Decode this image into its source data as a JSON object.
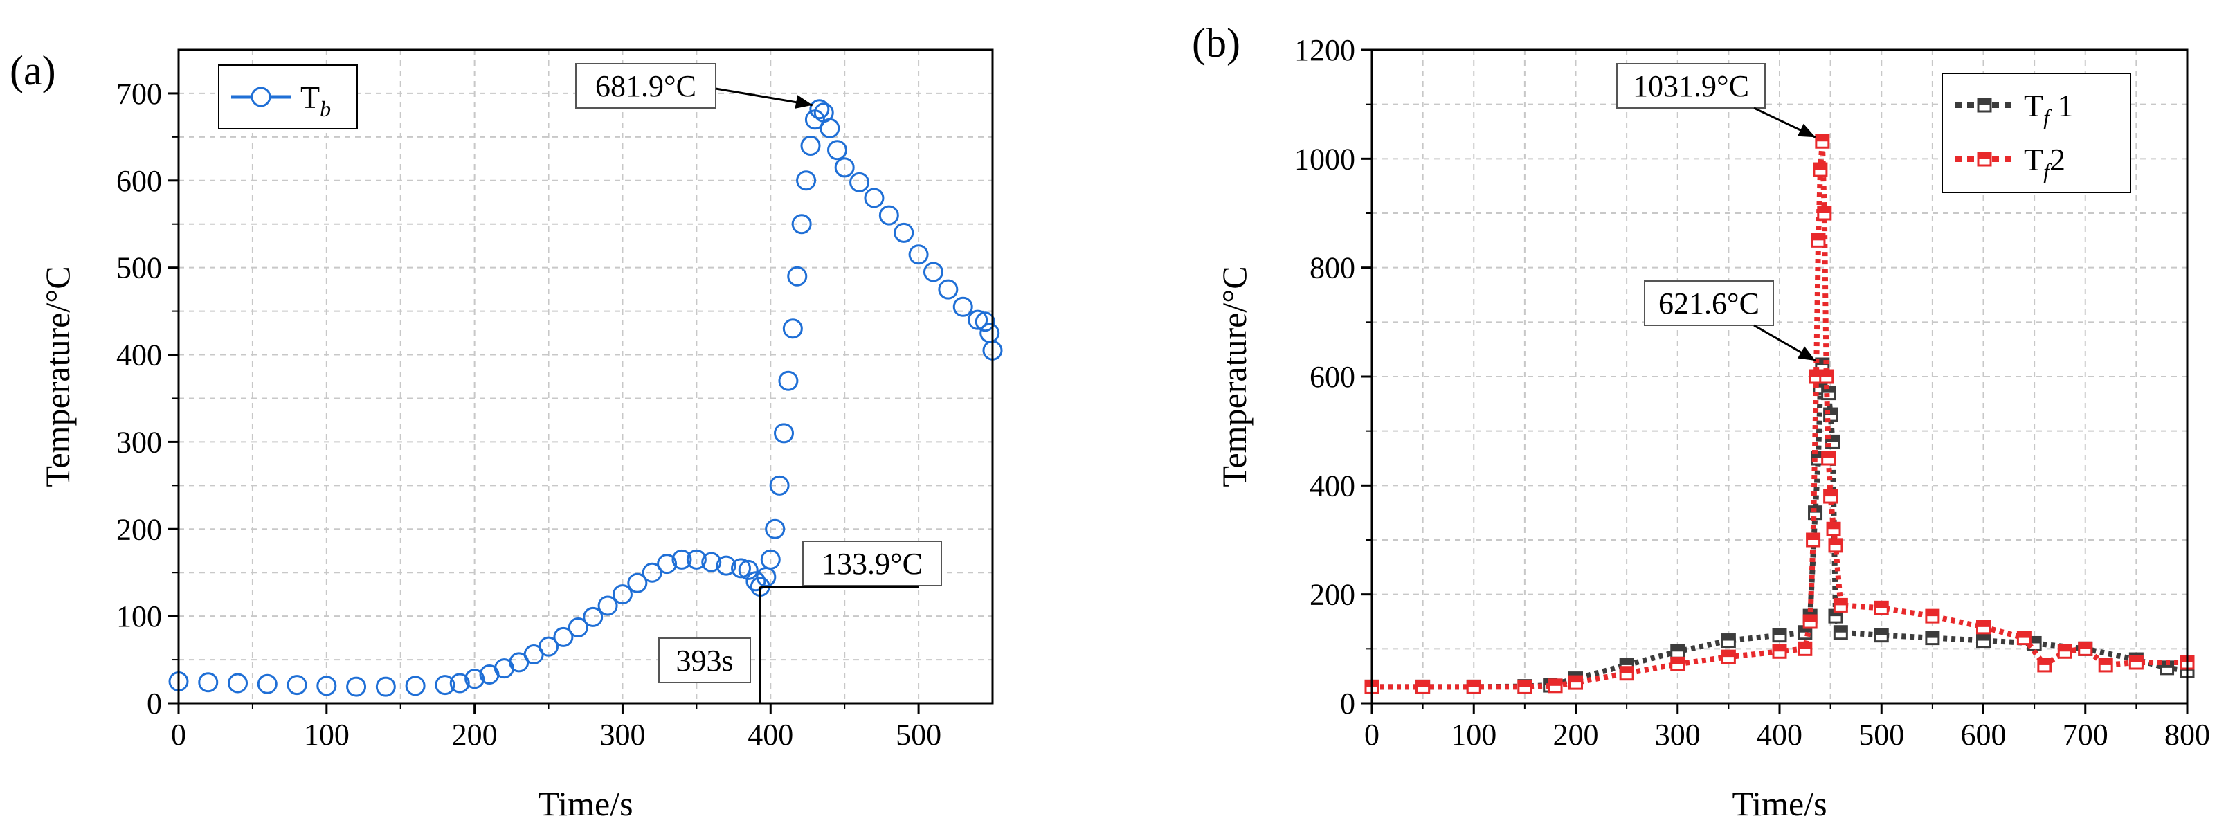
{
  "chart_data": [
    {
      "panel_label": "(a)",
      "type": "scatter",
      "title": "",
      "xlabel": "Time/s",
      "ylabel": "Temperature/°C",
      "xlim": [
        0,
        550
      ],
      "ylim": [
        0,
        750
      ],
      "xticks": [
        0,
        100,
        200,
        300,
        400,
        500
      ],
      "yticks": [
        0,
        100,
        200,
        300,
        400,
        500,
        600,
        700
      ],
      "grid": true,
      "legend_position": "top-left",
      "series": [
        {
          "name": "T",
          "subscript": "b",
          "color": "#1f6fd6",
          "marker": "open-circle",
          "points": [
            [
              0,
              25
            ],
            [
              20,
              24
            ],
            [
              40,
              23
            ],
            [
              60,
              22
            ],
            [
              80,
              21
            ],
            [
              100,
              20
            ],
            [
              120,
              19
            ],
            [
              140,
              19
            ],
            [
              160,
              20
            ],
            [
              180,
              21
            ],
            [
              190,
              23
            ],
            [
              200,
              28
            ],
            [
              210,
              33
            ],
            [
              220,
              40
            ],
            [
              230,
              47
            ],
            [
              240,
              56
            ],
            [
              250,
              65
            ],
            [
              260,
              76
            ],
            [
              270,
              87
            ],
            [
              280,
              99
            ],
            [
              290,
              112
            ],
            [
              300,
              125
            ],
            [
              310,
              138
            ],
            [
              320,
              150
            ],
            [
              330,
              160
            ],
            [
              340,
              165
            ],
            [
              350,
              165
            ],
            [
              360,
              162
            ],
            [
              370,
              158
            ],
            [
              380,
              155
            ],
            [
              385,
              153
            ],
            [
              390,
              140
            ],
            [
              393,
              133.9
            ],
            [
              397,
              145
            ],
            [
              400,
              165
            ],
            [
              403,
              200
            ],
            [
              406,
              250
            ],
            [
              409,
              310
            ],
            [
              412,
              370
            ],
            [
              415,
              430
            ],
            [
              418,
              490
            ],
            [
              421,
              550
            ],
            [
              424,
              600
            ],
            [
              427,
              640
            ],
            [
              430,
              670
            ],
            [
              433,
              681.9
            ],
            [
              436,
              678
            ],
            [
              440,
              660
            ],
            [
              445,
              635
            ],
            [
              450,
              615
            ],
            [
              460,
              598
            ],
            [
              470,
              580
            ],
            [
              480,
              560
            ],
            [
              490,
              540
            ],
            [
              500,
              515
            ],
            [
              510,
              495
            ],
            [
              520,
              475
            ],
            [
              530,
              455
            ],
            [
              540,
              440
            ],
            [
              545,
              438
            ],
            [
              548,
              425
            ],
            [
              550,
              405
            ]
          ]
        }
      ],
      "annotations": [
        {
          "text": "681.9°C",
          "x": 433,
          "y": 681.9
        },
        {
          "text": "133.9°C",
          "x": 393,
          "y": 133.9,
          "guide_to_x": 500
        },
        {
          "text": "393s",
          "x": 393,
          "y": 0
        }
      ]
    },
    {
      "panel_label": "(b)",
      "type": "scatter",
      "title": "",
      "xlabel": "Time/s",
      "ylabel": "Temperature/°C",
      "xlim": [
        0,
        800
      ],
      "ylim": [
        0,
        1200
      ],
      "xticks": [
        0,
        100,
        200,
        300,
        400,
        500,
        600,
        700,
        800
      ],
      "yticks": [
        0,
        200,
        400,
        600,
        800,
        1000,
        1200
      ],
      "grid": true,
      "legend_position": "top-right",
      "series": [
        {
          "name": "T",
          "subscript": "f",
          "suffix": " 1",
          "color": "#3c3c3c",
          "marker": "half-filled-square",
          "points": [
            [
              0,
              30
            ],
            [
              50,
              30
            ],
            [
              100,
              30
            ],
            [
              150,
              31
            ],
            [
              175,
              33
            ],
            [
              200,
              45
            ],
            [
              250,
              70
            ],
            [
              300,
              95
            ],
            [
              350,
              115
            ],
            [
              400,
              125
            ],
            [
              425,
              130
            ],
            [
              430,
              160
            ],
            [
              435,
              350
            ],
            [
              438,
              450
            ],
            [
              440,
              580
            ],
            [
              442,
              621.6
            ],
            [
              445,
              600
            ],
            [
              448,
              570
            ],
            [
              450,
              530
            ],
            [
              452,
              480
            ],
            [
              455,
              160
            ],
            [
              460,
              130
            ],
            [
              500,
              125
            ],
            [
              550,
              120
            ],
            [
              600,
              115
            ],
            [
              650,
              110
            ],
            [
              700,
              100
            ],
            [
              750,
              80
            ],
            [
              780,
              65
            ],
            [
              800,
              60
            ]
          ]
        },
        {
          "name": "T",
          "subscript": "f",
          "suffix": "2",
          "color": "#e8292b",
          "marker": "half-filled-square",
          "points": [
            [
              0,
              30
            ],
            [
              50,
              30
            ],
            [
              100,
              30
            ],
            [
              150,
              30
            ],
            [
              180,
              32
            ],
            [
              200,
              38
            ],
            [
              250,
              55
            ],
            [
              300,
              72
            ],
            [
              350,
              85
            ],
            [
              400,
              95
            ],
            [
              425,
              100
            ],
            [
              430,
              150
            ],
            [
              433,
              300
            ],
            [
              436,
              600
            ],
            [
              438,
              850
            ],
            [
              440,
              980
            ],
            [
              442,
              1031.9
            ],
            [
              444,
              900
            ],
            [
              446,
              600
            ],
            [
              448,
              450
            ],
            [
              450,
              380
            ],
            [
              453,
              320
            ],
            [
              455,
              290
            ],
            [
              460,
              180
            ],
            [
              500,
              175
            ],
            [
              550,
              160
            ],
            [
              600,
              140
            ],
            [
              640,
              120
            ],
            [
              660,
              70
            ],
            [
              680,
              95
            ],
            [
              700,
              100
            ],
            [
              720,
              70
            ],
            [
              750,
              75
            ],
            [
              800,
              75
            ]
          ]
        }
      ],
      "annotations": [
        {
          "text": "1031.9°C",
          "x": 442,
          "y": 1031.9
        },
        {
          "text": "621.6°C",
          "x": 442,
          "y": 621.6
        }
      ]
    }
  ]
}
